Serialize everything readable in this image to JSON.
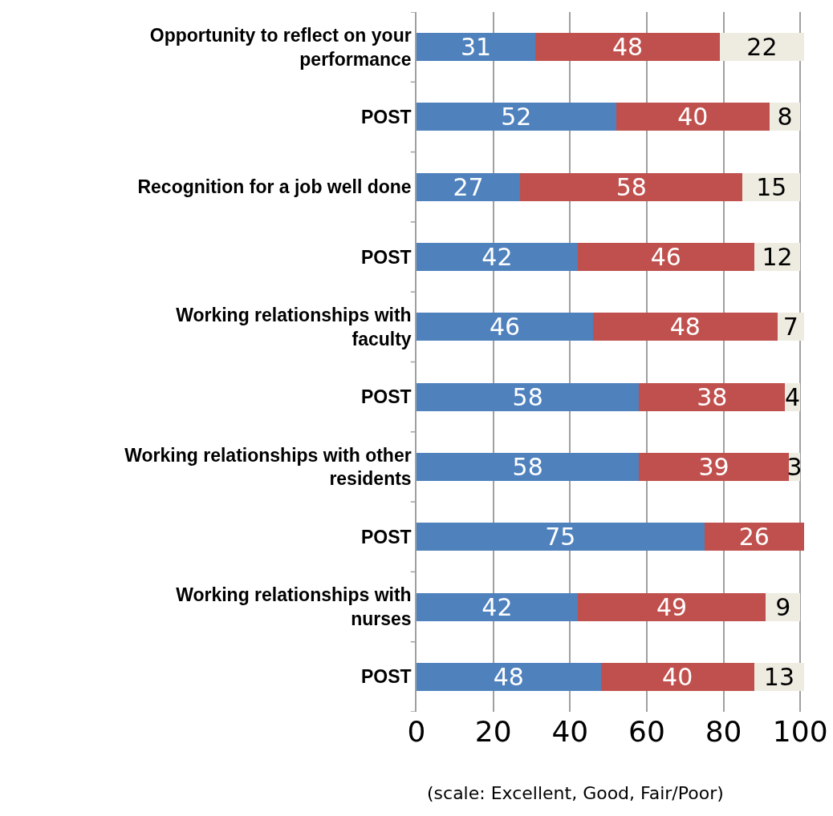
{
  "chart_data": {
    "type": "bar",
    "orientation": "horizontal",
    "stacked": true,
    "categories": [
      "Opportunity to reflect on your performance",
      "POST",
      "Recognition for a job well done",
      "POST",
      "Working relationships with faculty",
      "POST",
      "Working relationships with other residents",
      "POST",
      "Working relationships with nurses",
      "POST"
    ],
    "series": [
      {
        "color": "#4f81bd",
        "values": [
          31,
          52,
          27,
          42,
          46,
          58,
          58,
          75,
          42,
          48
        ]
      },
      {
        "color": "#c0504d",
        "values": [
          48,
          40,
          58,
          46,
          48,
          38,
          39,
          26,
          49,
          40
        ]
      },
      {
        "color": "#eeece1",
        "values": [
          22,
          8,
          15,
          12,
          7,
          4,
          3,
          null,
          9,
          13
        ]
      }
    ],
    "xlim": [
      0,
      101
    ],
    "xticks": [
      0,
      20,
      40,
      60,
      80,
      100
    ],
    "grid": "x",
    "data_labels": true,
    "annotations": [
      "(scale: Excellent, Good, Fair/Poor)"
    ]
  }
}
